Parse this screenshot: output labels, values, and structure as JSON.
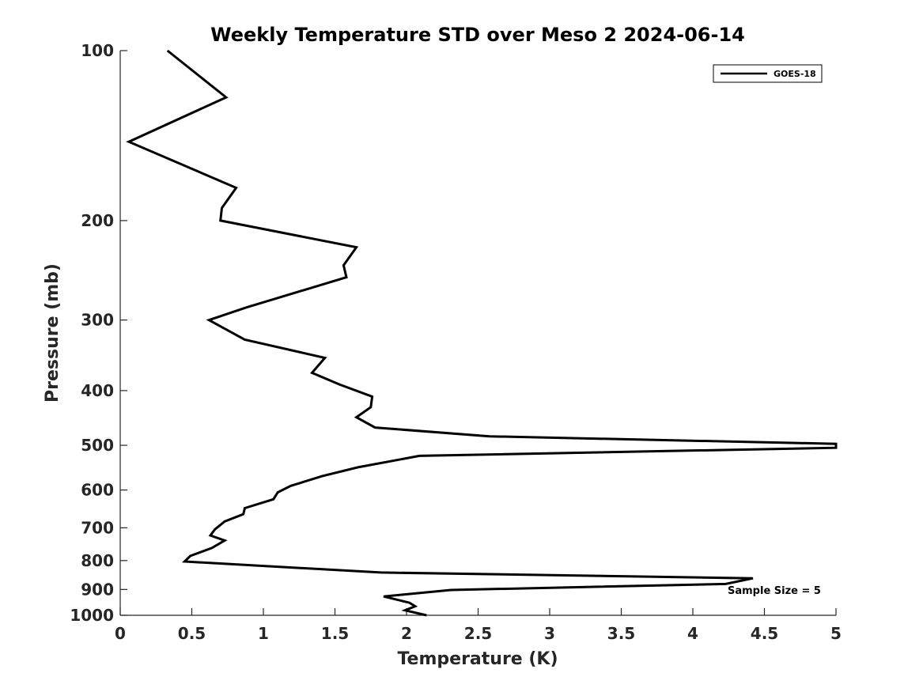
{
  "chart_data": {
    "type": "line",
    "title": "Weekly Temperature STD over Meso 2 2024-06-14",
    "xlabel": "Temperature (K)",
    "ylabel": "Pressure (mb)",
    "xlim": [
      0,
      5
    ],
    "ylim": [
      100,
      1000
    ],
    "y_scale": "log",
    "y_reversed": true,
    "x_ticks": [
      "0",
      "0.5",
      "1",
      "1.5",
      "2",
      "2.5",
      "3",
      "3.5",
      "4",
      "4.5",
      "5"
    ],
    "y_ticks": [
      "100",
      "200",
      "300",
      "400",
      "500",
      "600",
      "700",
      "800",
      "900",
      "1000"
    ],
    "legend": {
      "location": "top-right",
      "entries": [
        "GOES-18"
      ]
    },
    "annotation": "Sample Size = 5",
    "colors": {
      "line": "#000000",
      "axis": "#262626"
    },
    "series": [
      {
        "name": "GOES-18",
        "x": [
          0.33,
          0.74,
          0.06,
          0.81,
          0.71,
          0.7,
          1.65,
          1.56,
          1.58,
          0.88,
          0.62,
          0.87,
          1.43,
          1.34,
          1.53,
          1.76,
          1.75,
          1.65,
          1.78,
          2.58,
          5.0,
          5.0,
          2.09,
          1.66,
          1.41,
          1.19,
          1.1,
          1.07,
          0.87,
          0.86,
          0.73,
          0.66,
          0.63,
          0.73,
          0.64,
          0.49,
          0.45,
          1.82,
          4.42,
          4.23,
          2.31,
          1.84,
          2.02,
          2.06,
          1.99,
          2.14
        ],
        "y": [
          100,
          121,
          145,
          175,
          190,
          200,
          223,
          240,
          252,
          285,
          300,
          325,
          350,
          372,
          390,
          410,
          428,
          446,
          465,
          482,
          497,
          505,
          522,
          547,
          567,
          590,
          606,
          623,
          646,
          662,
          682,
          705,
          722,
          737,
          760,
          785,
          803,
          840,
          860,
          880,
          902,
          926,
          950,
          964,
          980,
          1000
        ]
      }
    ]
  }
}
